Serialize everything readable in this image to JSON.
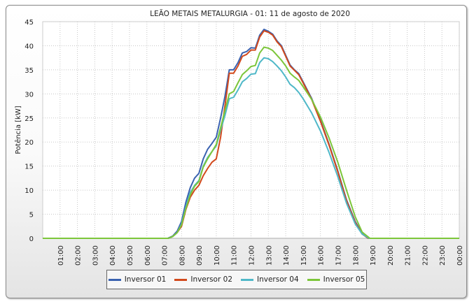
{
  "chart_data": {
    "type": "line",
    "title": "LEÃO METAIS METALURGIA - 01: 11 de agosto de 2020",
    "ylabel": "Potência [kW]",
    "xlabel": "",
    "ylim": [
      0,
      45
    ],
    "yticks": [
      "0",
      "5",
      "10",
      "15",
      "20",
      "25",
      "30",
      "35",
      "40",
      "45"
    ],
    "xlim_hours": [
      0,
      24
    ],
    "xticks": [
      "01:00",
      "02:00",
      "03:00",
      "04:00",
      "05:00",
      "06:00",
      "07:00",
      "08:00",
      "09:00",
      "10:00",
      "11:00",
      "12:00",
      "13:00",
      "14:00",
      "15:00",
      "16:00",
      "17:00",
      "18:00",
      "19:00",
      "20:00",
      "21:00",
      "22:00",
      "23:00",
      "00:00"
    ],
    "grid": true,
    "legend_position": "bottom",
    "series": [
      {
        "name": "Inversor 01",
        "color": "#3a62b0",
        "points": [
          [
            0,
            0
          ],
          [
            7.2,
            0
          ],
          [
            7.5,
            0.5
          ],
          [
            7.75,
            1.5
          ],
          [
            8,
            3.5
          ],
          [
            8.25,
            7.5
          ],
          [
            8.5,
            10.5
          ],
          [
            8.75,
            12.5
          ],
          [
            9,
            13.5
          ],
          [
            9.25,
            16.5
          ],
          [
            9.5,
            18.5
          ],
          [
            9.75,
            19.7
          ],
          [
            10,
            21
          ],
          [
            10.25,
            25
          ],
          [
            10.5,
            29.5
          ],
          [
            10.75,
            35
          ],
          [
            11,
            35
          ],
          [
            11.25,
            36.5
          ],
          [
            11.5,
            38.5
          ],
          [
            11.75,
            38.8
          ],
          [
            12,
            39.6
          ],
          [
            12.25,
            39.5
          ],
          [
            12.5,
            42.2
          ],
          [
            12.75,
            43.4
          ],
          [
            13,
            43
          ],
          [
            13.25,
            42.4
          ],
          [
            13.5,
            41
          ],
          [
            13.75,
            40
          ],
          [
            14,
            38
          ],
          [
            14.25,
            36
          ],
          [
            14.5,
            35
          ],
          [
            14.75,
            34.2
          ],
          [
            15,
            32.5
          ],
          [
            15.5,
            29
          ],
          [
            16,
            24.5
          ],
          [
            16.5,
            19.5
          ],
          [
            17,
            14
          ],
          [
            17.5,
            8
          ],
          [
            18,
            3.5
          ],
          [
            18.4,
            1
          ],
          [
            18.75,
            0
          ],
          [
            24,
            0
          ]
        ]
      },
      {
        "name": "Inversor 02",
        "color": "#d2491c",
        "points": [
          [
            0,
            0
          ],
          [
            7.25,
            0
          ],
          [
            7.5,
            0.4
          ],
          [
            7.75,
            1.2
          ],
          [
            8,
            2.5
          ],
          [
            8.25,
            6
          ],
          [
            8.5,
            8.5
          ],
          [
            8.75,
            10
          ],
          [
            9,
            11
          ],
          [
            9.25,
            13
          ],
          [
            9.5,
            14.5
          ],
          [
            9.75,
            15.8
          ],
          [
            10,
            16.5
          ],
          [
            10.25,
            21
          ],
          [
            10.5,
            27.5
          ],
          [
            10.75,
            34.3
          ],
          [
            11,
            34.3
          ],
          [
            11.25,
            35.8
          ],
          [
            11.5,
            37.8
          ],
          [
            11.75,
            38.2
          ],
          [
            12,
            39.1
          ],
          [
            12.25,
            39.1
          ],
          [
            12.5,
            41.8
          ],
          [
            12.75,
            43.1
          ],
          [
            13,
            42.8
          ],
          [
            13.25,
            42.2
          ],
          [
            13.5,
            40.8
          ],
          [
            13.75,
            39.8
          ],
          [
            14,
            37.8
          ],
          [
            14.25,
            35.8
          ],
          [
            14.5,
            34.9
          ],
          [
            14.75,
            34
          ],
          [
            15,
            32.3
          ],
          [
            15.5,
            28.8
          ],
          [
            16,
            24.3
          ],
          [
            16.5,
            19.3
          ],
          [
            17,
            13.8
          ],
          [
            17.5,
            7.8
          ],
          [
            18,
            3.3
          ],
          [
            18.4,
            0.9
          ],
          [
            18.75,
            0
          ],
          [
            24,
            0
          ]
        ]
      },
      {
        "name": "Inversor 04",
        "color": "#4fb8c8",
        "points": [
          [
            0,
            0
          ],
          [
            7.25,
            0
          ],
          [
            7.5,
            0.4
          ],
          [
            7.75,
            1.2
          ],
          [
            8,
            3
          ],
          [
            8.25,
            6.5
          ],
          [
            8.5,
            9.5
          ],
          [
            8.75,
            11
          ],
          [
            9,
            12
          ],
          [
            9.25,
            15
          ],
          [
            9.5,
            16.8
          ],
          [
            9.75,
            18
          ],
          [
            10,
            19.2
          ],
          [
            10.25,
            22.5
          ],
          [
            10.5,
            25.5
          ],
          [
            10.75,
            29
          ],
          [
            11,
            29.3
          ],
          [
            11.25,
            30.8
          ],
          [
            11.5,
            32.5
          ],
          [
            11.75,
            33.2
          ],
          [
            12,
            34.1
          ],
          [
            12.25,
            34.2
          ],
          [
            12.5,
            36.5
          ],
          [
            12.75,
            37.5
          ],
          [
            13,
            37.3
          ],
          [
            13.25,
            36.7
          ],
          [
            13.5,
            35.8
          ],
          [
            13.75,
            34.8
          ],
          [
            14,
            33.5
          ],
          [
            14.25,
            32
          ],
          [
            14.5,
            31.3
          ],
          [
            14.75,
            30.3
          ],
          [
            15,
            29
          ],
          [
            15.5,
            26
          ],
          [
            16,
            22.3
          ],
          [
            16.5,
            17.8
          ],
          [
            17,
            12.8
          ],
          [
            17.5,
            7.3
          ],
          [
            18,
            3
          ],
          [
            18.4,
            0.9
          ],
          [
            18.8,
            0
          ],
          [
            24,
            0
          ]
        ]
      },
      {
        "name": "Inversor 05",
        "color": "#7cc63a",
        "points": [
          [
            0,
            0
          ],
          [
            7.25,
            0
          ],
          [
            7.5,
            0.4
          ],
          [
            7.75,
            1.2
          ],
          [
            8,
            2.8
          ],
          [
            8.25,
            6.2
          ],
          [
            8.5,
            9
          ],
          [
            8.75,
            10.8
          ],
          [
            9,
            11.8
          ],
          [
            9.25,
            14.8
          ],
          [
            9.5,
            16.5
          ],
          [
            9.75,
            18
          ],
          [
            10,
            19.5
          ],
          [
            10.25,
            23
          ],
          [
            10.5,
            26.5
          ],
          [
            10.75,
            30
          ],
          [
            11,
            30.5
          ],
          [
            11.25,
            32.3
          ],
          [
            11.5,
            34
          ],
          [
            11.75,
            34.8
          ],
          [
            12,
            35.7
          ],
          [
            12.25,
            35.9
          ],
          [
            12.5,
            38.5
          ],
          [
            12.75,
            39.7
          ],
          [
            13,
            39.5
          ],
          [
            13.25,
            39
          ],
          [
            13.5,
            38
          ],
          [
            13.75,
            37
          ],
          [
            14,
            35.8
          ],
          [
            14.25,
            34.3
          ],
          [
            14.5,
            33.5
          ],
          [
            14.75,
            32.8
          ],
          [
            15,
            31.5
          ],
          [
            15.5,
            28.8
          ],
          [
            16,
            25.2
          ],
          [
            16.5,
            20.8
          ],
          [
            17,
            15.8
          ],
          [
            17.5,
            10
          ],
          [
            18,
            4.5
          ],
          [
            18.4,
            1.3
          ],
          [
            18.85,
            0
          ],
          [
            24,
            0
          ]
        ]
      }
    ]
  }
}
